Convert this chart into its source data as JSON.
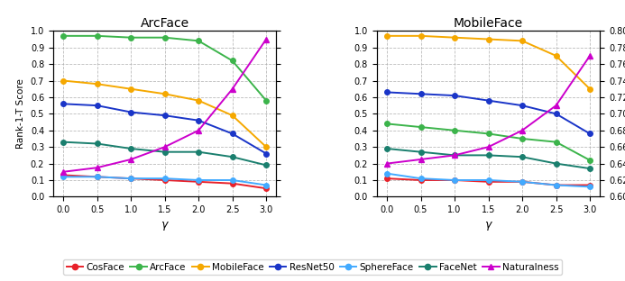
{
  "gamma": [
    0.0,
    0.5,
    1.0,
    1.5,
    2.0,
    2.5,
    3.0
  ],
  "arcface": {
    "title": "ArcFace",
    "cosface": [
      0.13,
      0.12,
      0.11,
      0.1,
      0.09,
      0.08,
      0.05
    ],
    "arcface": [
      0.97,
      0.97,
      0.96,
      0.96,
      0.94,
      0.82,
      0.58
    ],
    "mobileface": [
      0.7,
      0.68,
      0.65,
      0.62,
      0.58,
      0.49,
      0.3
    ],
    "resnet50": [
      0.56,
      0.55,
      0.51,
      0.49,
      0.46,
      0.38,
      0.26
    ],
    "sphereface": [
      0.12,
      0.12,
      0.11,
      0.11,
      0.1,
      0.1,
      0.07
    ],
    "facenet": [
      0.33,
      0.32,
      0.29,
      0.27,
      0.27,
      0.24,
      0.19
    ],
    "naturalness": [
      0.63,
      0.635,
      0.645,
      0.66,
      0.68,
      0.73,
      0.79
    ]
  },
  "mobileface": {
    "title": "MobileFace",
    "cosface": [
      0.11,
      0.1,
      0.1,
      0.09,
      0.09,
      0.07,
      0.07
    ],
    "arcface": [
      0.44,
      0.42,
      0.4,
      0.38,
      0.35,
      0.33,
      0.22
    ],
    "mobileface": [
      0.97,
      0.97,
      0.96,
      0.95,
      0.94,
      0.85,
      0.65
    ],
    "resnet50": [
      0.63,
      0.62,
      0.61,
      0.58,
      0.55,
      0.5,
      0.38
    ],
    "sphereface": [
      0.14,
      0.11,
      0.1,
      0.1,
      0.09,
      0.07,
      0.06
    ],
    "facenet": [
      0.29,
      0.27,
      0.25,
      0.25,
      0.24,
      0.2,
      0.17
    ],
    "naturalness": [
      0.64,
      0.645,
      0.65,
      0.66,
      0.68,
      0.71,
      0.77
    ]
  },
  "ssim_ticks": [
    0.6,
    0.62,
    0.64,
    0.66,
    0.68,
    0.7,
    0.72,
    0.74,
    0.76,
    0.78,
    0.8
  ],
  "left_yticks": [
    0.0,
    0.1,
    0.2,
    0.3,
    0.4,
    0.5,
    0.6,
    0.7,
    0.8,
    0.9,
    1.0
  ],
  "ylim_left": [
    0.0,
    1.0
  ],
  "ylim_right": [
    0.6,
    0.8
  ],
  "colors": {
    "cosface": "#e8212a",
    "arcface": "#3cb44b",
    "mobileface": "#f5a800",
    "resnet50": "#1a35c8",
    "sphereface": "#42aaff",
    "facenet": "#1a7f6e",
    "naturalness": "#cc00cc"
  },
  "markers": {
    "cosface": "o",
    "arcface": "o",
    "mobileface": "o",
    "resnet50": "o",
    "sphereface": "o",
    "facenet": "o",
    "naturalness": "^"
  },
  "legend_labels": [
    "CosFace",
    "ArcFace",
    "MobileFace",
    "ResNet50",
    "SphereFace",
    "FaceNet",
    "Naturalness"
  ],
  "legend_keys": [
    "cosface",
    "arcface",
    "mobileface",
    "resnet50",
    "sphereface",
    "facenet",
    "naturalness"
  ]
}
